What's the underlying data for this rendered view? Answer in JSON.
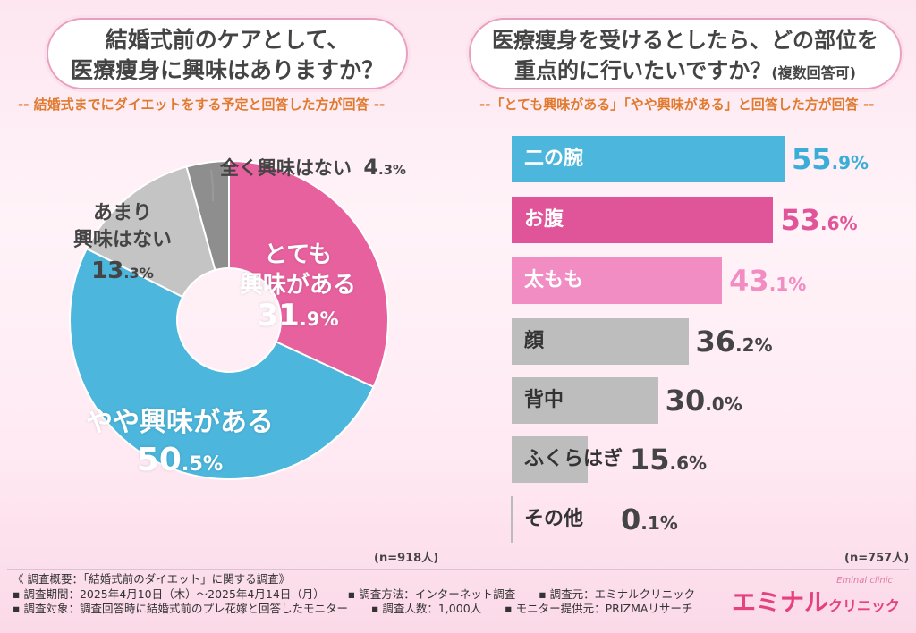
{
  "left": {
    "title_line1": "結婚式前のケアとして、",
    "title_line2": "医療痩身に興味はありますか？",
    "note": "-- 結婚式までにダイエットをする予定と回答した方が回答 --",
    "n": "(n=918人)"
  },
  "right": {
    "title_line1": "医療痩身を受けるとしたら、どの部位を",
    "title_line2": "重点的に行いたいですか？",
    "title_tag": "(複数回答可)",
    "note": "--「とても興味がある」「やや興味がある」と回答した方が回答 --",
    "n": "(n=757人)"
  },
  "colors": {
    "pink": "#e8619f",
    "blue": "#4cb6dc",
    "lightpink": "#f28dc4",
    "gray": "#b8b8b8",
    "darkgray": "#8c8c8c",
    "pink_text": "#e8619f",
    "blue_text": "#3aaed8"
  },
  "chart_data": [
    {
      "type": "pie",
      "slices": [
        {
          "label": "とても興味がある",
          "label_line1": "とても",
          "label_line2": "興味がある",
          "value": 31.9,
          "pct_int": "31",
          "pct_dec": ".9%",
          "color": "#e8619f"
        },
        {
          "label": "やや興味がある",
          "value": 50.5,
          "pct_int": "50",
          "pct_dec": ".5%",
          "color": "#4cb6dc"
        },
        {
          "label": "あまり興味はない",
          "label_line1": "あまり",
          "label_line2": "興味はない",
          "value": 13.3,
          "pct_int": "13",
          "pct_dec": ".3%",
          "color": "#c4c4c4"
        },
        {
          "label": "全く興味はない",
          "value": 4.3,
          "pct_int": "4",
          "pct_dec": ".3%",
          "color": "#8e8e8e"
        }
      ]
    },
    {
      "type": "bar",
      "categories": [
        "二の腕",
        "お腹",
        "太もも",
        "顔",
        "背中",
        "ふくらはぎ",
        "その他"
      ],
      "values": [
        55.9,
        53.6,
        43.1,
        36.2,
        30.0,
        15.6,
        0.1
      ],
      "labels_int": [
        "55",
        "53",
        "43",
        "36",
        "30",
        "15",
        "0"
      ],
      "labels_dec": [
        ".9%",
        ".6%",
        ".1%",
        ".2%",
        ".0%",
        ".6%",
        ".1%"
      ],
      "colors": [
        "#4cb6dc",
        "#e0559a",
        "#f28dc4",
        "#bdbdbd",
        "#bdbdbd",
        "#bdbdbd",
        "#bdbdbd"
      ],
      "value_colors": [
        "#3aaed8",
        "#e0559a",
        "#f28dc4",
        "#444444",
        "#444444",
        "#444444",
        "#444444"
      ],
      "label_colors": [
        "#ffffff",
        "#ffffff",
        "#ffffff",
        "#333333",
        "#333333",
        "#333333",
        "#333333"
      ]
    }
  ],
  "footer": {
    "line1": "《 調査概要：「結婚式前のダイエット」に関する調査》",
    "period": "▪ 調査期間：2025年4月10日（木）〜2025年4月14日（月）",
    "method": "▪ 調査方法：インターネット調査",
    "source": "▪ 調査元：エミナルクリニック",
    "target": "▪ 調査対象：調査回答時に結婚式前のプレ花嫁と回答したモニター",
    "count": "▪ 調査人数：1,000人",
    "provider": "▪ モニター提供元：PRIZMAリサーチ"
  },
  "brand": {
    "main": "エミナル",
    "sub": "クリニック",
    "script": "Eminal clinic"
  }
}
